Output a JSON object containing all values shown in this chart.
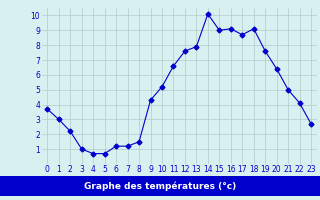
{
  "x": [
    0,
    1,
    2,
    3,
    4,
    5,
    6,
    7,
    8,
    9,
    10,
    11,
    12,
    13,
    14,
    15,
    16,
    17,
    18,
    19,
    20,
    21,
    22,
    23
  ],
  "y": [
    3.7,
    3.0,
    2.2,
    1.0,
    0.7,
    0.7,
    1.2,
    1.2,
    1.5,
    4.3,
    5.2,
    6.6,
    7.6,
    7.9,
    10.1,
    9.0,
    9.1,
    8.7,
    9.1,
    7.6,
    6.4,
    5.0,
    4.1,
    2.7
  ],
  "line_color": "#0000cc",
  "marker": "D",
  "marker_size": 2.5,
  "bg_color": "#d8f0f0",
  "grid_color": "#b0cccc",
  "tick_color": "#0000cc",
  "xlabel": "Graphe des températures (°c)",
  "xlabel_bg": "#0000cc",
  "xlabel_fg": "#ffffff",
  "ylim": [
    0,
    10.5
  ],
  "xlim": [
    -0.5,
    23.5
  ],
  "yticks": [
    1,
    2,
    3,
    4,
    5,
    6,
    7,
    8,
    9,
    10
  ],
  "xticks": [
    0,
    1,
    2,
    3,
    4,
    5,
    6,
    7,
    8,
    9,
    10,
    11,
    12,
    13,
    14,
    15,
    16,
    17,
    18,
    19,
    20,
    21,
    22,
    23
  ],
  "tick_fontsize": 5.5,
  "label_fontsize": 6.5
}
